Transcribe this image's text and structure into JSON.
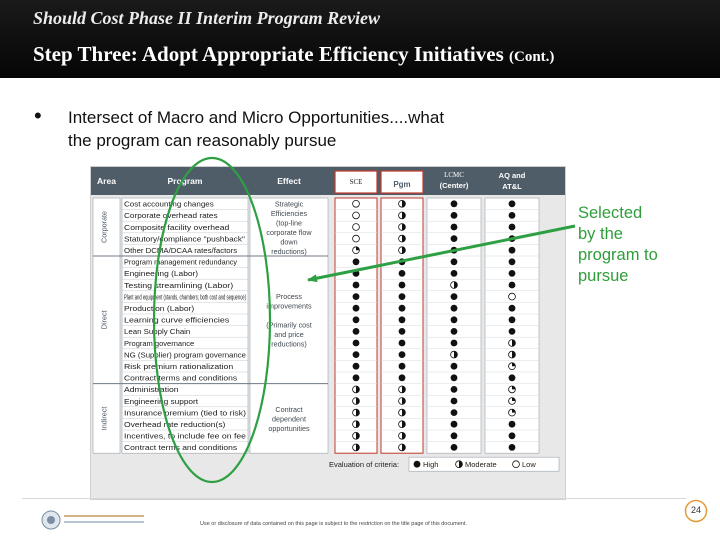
{
  "header": {
    "title": "Should Cost Phase II Interim Program Review",
    "subtitle_main": "Step Three:  Adopt Appropriate Efficiency Initiatives",
    "subtitle_cont": "(Cont.)"
  },
  "bullet": {
    "symbol": "•",
    "line1": "Intersect of Macro and Micro Opportunities....what",
    "line2": "the program can reasonably pursue"
  },
  "callout": {
    "lines": [
      "Selected",
      "by the",
      "program to",
      "pursue"
    ],
    "color": "#2f9e3a"
  },
  "matrix": {
    "header": {
      "area": "Area",
      "program": "Program",
      "effect": "Effect",
      "sce": "SCE",
      "pgm": "Pgm",
      "lcmc": [
        "LCMC",
        "(Center)"
      ],
      "aq": [
        "AQ and",
        "AT&L"
      ]
    },
    "areas": [
      "Corporate",
      "Direct",
      "Indirect"
    ],
    "effects": {
      "corporate": [
        "Strategic",
        "Efficiencies",
        "(top-line",
        "corporate flow",
        "down",
        "reductions)"
      ],
      "direct": [
        "Process",
        "improvements",
        "",
        "(Primarily cost",
        "and price",
        "reductions)"
      ],
      "indirect": [
        "Contract",
        "dependent",
        "opportunities"
      ]
    },
    "rows": [
      {
        "area": "Corporate",
        "program": "Cost accounting changes",
        "ratings": [
          "low",
          "half",
          "high",
          "high"
        ]
      },
      {
        "area": "Corporate",
        "program": "Corporate overhead rates",
        "ratings": [
          "low",
          "half",
          "high",
          "high"
        ]
      },
      {
        "area": "Corporate",
        "program": "Composite facility overhead",
        "ratings": [
          "low",
          "half",
          "high",
          "high"
        ]
      },
      {
        "area": "Corporate",
        "program": "Statutory/compliance \"pushback\"",
        "ratings": [
          "low",
          "half",
          "high",
          "high"
        ]
      },
      {
        "area": "Corporate",
        "program": "Other DCMA/DCAA rates/factors",
        "ratings": [
          "quarter",
          "half",
          "high",
          "high"
        ]
      },
      {
        "area": "Direct",
        "program": "Program management redundancy",
        "ratings": [
          "high",
          "high",
          "high",
          "high"
        ]
      },
      {
        "area": "Direct",
        "program": "Engineering (Labor)",
        "ratings": [
          "high",
          "high",
          "high",
          "high"
        ]
      },
      {
        "area": "Direct",
        "program": "Testing streamlining (Labor)",
        "ratings": [
          "high",
          "high",
          "half",
          "high"
        ]
      },
      {
        "area": "Direct",
        "program": "Plant and equipment (stands, chambers; both cost and sequence)",
        "ratings": [
          "high",
          "high",
          "high",
          "low"
        ]
      },
      {
        "area": "Direct",
        "program": "Production (Labor)",
        "ratings": [
          "high",
          "high",
          "high",
          "high"
        ]
      },
      {
        "area": "Direct",
        "program": "Learning curve efficiencies",
        "ratings": [
          "high",
          "high",
          "high",
          "high"
        ]
      },
      {
        "area": "Direct",
        "program": "Lean Supply Chain",
        "ratings": [
          "high",
          "high",
          "high",
          "high"
        ]
      },
      {
        "area": "Direct",
        "program": "Program governance",
        "ratings": [
          "high",
          "high",
          "high",
          "half"
        ]
      },
      {
        "area": "Direct",
        "program": "NG (Supplier) program governance",
        "ratings": [
          "high",
          "high",
          "half",
          "half"
        ]
      },
      {
        "area": "Direct",
        "program": "Risk premium rationalization",
        "ratings": [
          "high",
          "high",
          "high",
          "quarter"
        ]
      },
      {
        "area": "Direct",
        "program": "Contract terms and conditions",
        "ratings": [
          "high",
          "high",
          "high",
          "high"
        ]
      },
      {
        "area": "Indirect",
        "program": "Administration",
        "ratings": [
          "half",
          "half",
          "high",
          "quarter"
        ]
      },
      {
        "area": "Indirect",
        "program": "Engineering support",
        "ratings": [
          "half",
          "half",
          "high",
          "quarter"
        ]
      },
      {
        "area": "Indirect",
        "program": "Insurance premium (tied to risk)",
        "ratings": [
          "half",
          "half",
          "high",
          "quarter"
        ]
      },
      {
        "area": "Indirect",
        "program": "Overhead rate reduction(s)",
        "ratings": [
          "half",
          "half",
          "high",
          "high"
        ]
      },
      {
        "area": "Indirect",
        "program": "Incentives, to include fee on fee",
        "ratings": [
          "half",
          "half",
          "high",
          "high"
        ]
      },
      {
        "area": "Indirect",
        "program": "Contract terms and conditions",
        "ratings": [
          "half",
          "half",
          "high",
          "high"
        ]
      }
    ],
    "legend": {
      "label": "Evaluation of criteria:",
      "high": "High",
      "moderate": "Moderate",
      "low": "Low"
    }
  },
  "footer": {
    "logo_text": "NAVAL POSTGRADUATE SCHOOL",
    "note": "Use or disclosure of data contained on this page is subject to the restriction on the title page of this document.",
    "page_number": "24"
  },
  "colors": {
    "header_bg": "#0d0d0d",
    "table_header": "#4f5d69",
    "highlight_ellipse": "#2ea043",
    "sce_box": "#c0392b"
  }
}
